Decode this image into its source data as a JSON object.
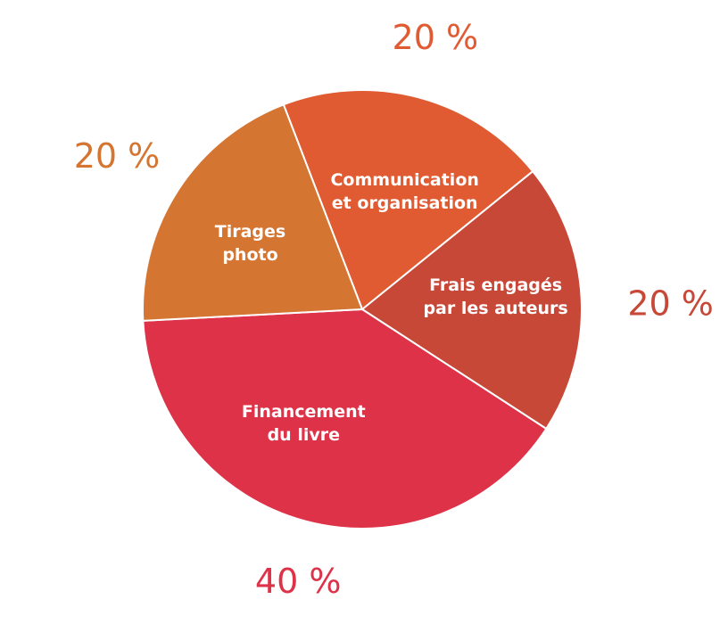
{
  "chart_data": {
    "type": "pie",
    "title": "",
    "slices": [
      {
        "label_lines": [
          "Communication",
          "et organisation"
        ],
        "value": 20,
        "display": "20 %",
        "color": "#e05a32",
        "label_color": "#e05a32"
      },
      {
        "label_lines": [
          "Frais engagés",
          "par les auteurs"
        ],
        "value": 20,
        "display": "20 %",
        "color": "#c84838",
        "label_color": "#c84838"
      },
      {
        "label_lines": [
          "Financement",
          "du livre"
        ],
        "value": 40,
        "display": "40 %",
        "color": "#dd3248",
        "label_color": "#dd3248"
      },
      {
        "label_lines": [
          "Tirages",
          "photo"
        ],
        "value": 20,
        "display": "20 %",
        "color": "#d47532",
        "label_color": "#d47532"
      }
    ]
  }
}
